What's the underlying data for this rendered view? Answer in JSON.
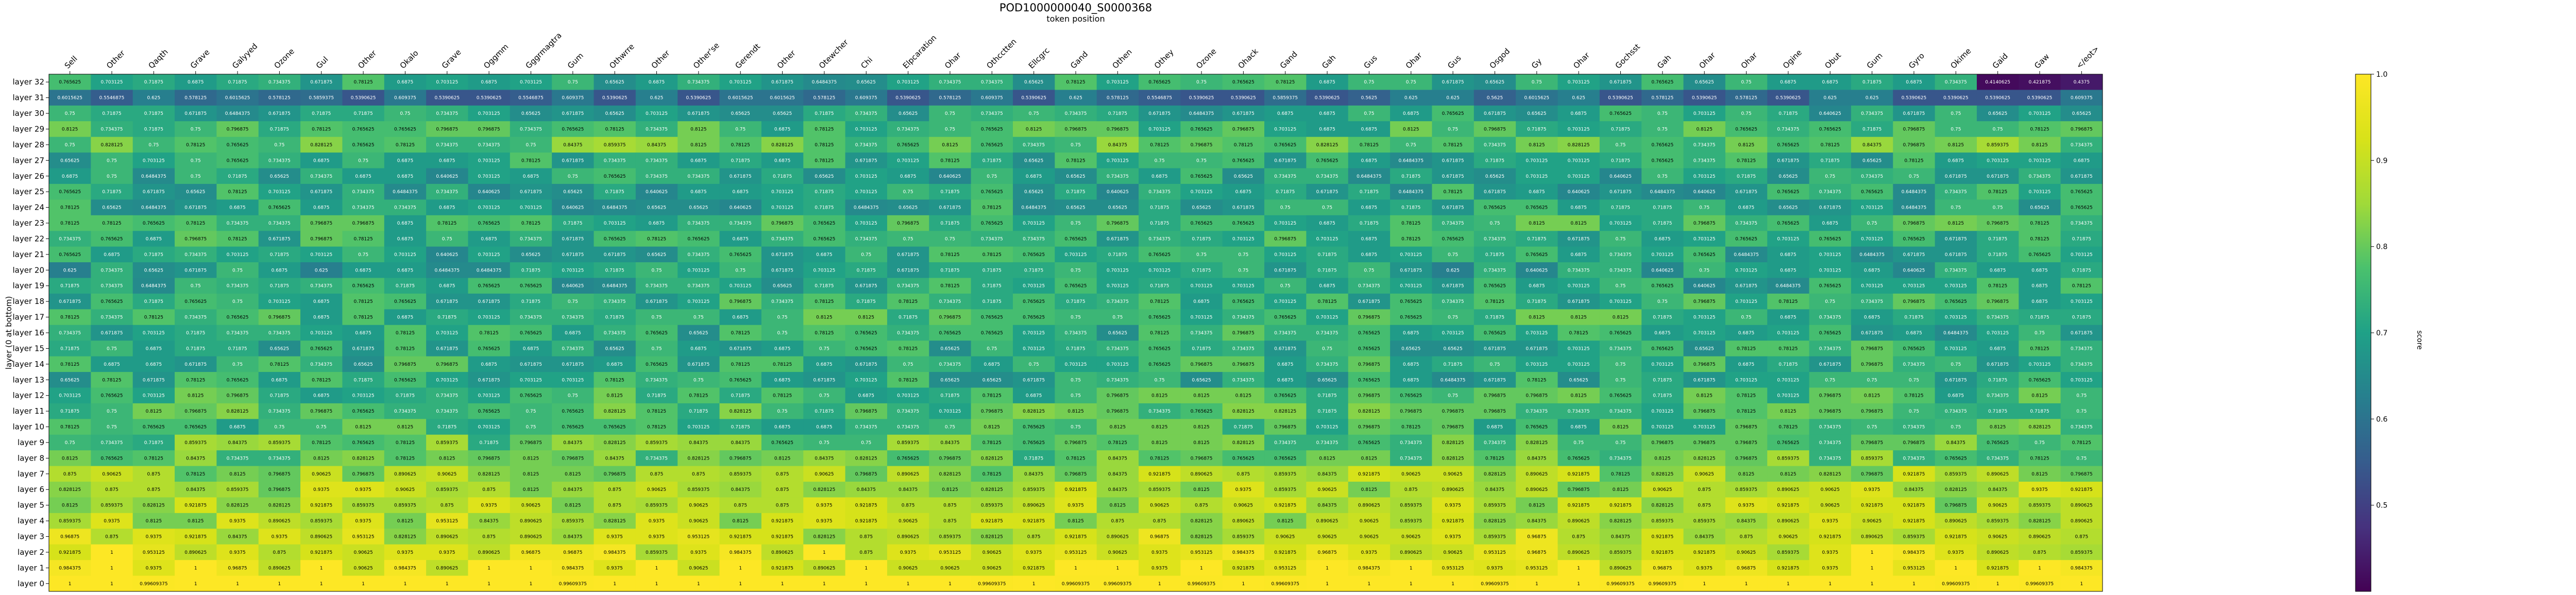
{
  "chart_data": {
    "type": "heatmap",
    "title": "POD1000000040_S0000368",
    "subtitle": "token position",
    "ylabel": "layer (0 at bottom)",
    "colorbar_label": "score",
    "colorbar_range": [
      0.4,
      1.0
    ],
    "colorbar_ticks": [
      "0.5",
      "0.6",
      "0.7",
      "0.8",
      "0.9",
      "1.0"
    ],
    "colormap": "viridis",
    "x_tokens": [
      "Sell",
      "Other",
      "Qaqth",
      "Grave",
      "Galyyed",
      "Ozone",
      "Gul",
      "Other",
      "Okalo",
      "Grave",
      "Oggmm",
      "Gggrmagtra",
      "Gum",
      "Othwrre",
      "Other",
      "Other'se",
      "Gerendt",
      "Other",
      "Otewcher",
      "Chi",
      "Elpcaration",
      "Ohar",
      "Othcctten",
      "Ellcgrc",
      "Gand",
      "Othen",
      "Othey",
      "Ozone",
      "Ohack",
      "Gand",
      "Gah",
      "Gus",
      "Ohar",
      "Gus",
      "Osgod",
      "Gy",
      "Ohar",
      "Gochsst",
      "Gah",
      "Ohar",
      "Ohar",
      "Ogine",
      "Obut",
      "Gum",
      "Gyro",
      "Okime",
      "Gaid",
      "Gaw",
      "</eot>"
    ],
    "y_labels": [
      "layer 32",
      "layer 31",
      "layer 30",
      "layer 29",
      "layer 28",
      "layer 27",
      "layer 26",
      "layer 25",
      "layer 24",
      "layer 23",
      "layer 22",
      "layer 21",
      "layer 20",
      "layer 19",
      "layer 18",
      "layer 17",
      "layer 16",
      "layer 15",
      "layer 14",
      "layer 13",
      "layer 12",
      "layer 11",
      "layer 10",
      "layer 9",
      "layer 8",
      "layer 7",
      "layer 6",
      "layer 5",
      "layer 4",
      "layer 3",
      "layer 2",
      "layer 1",
      "layer 0"
    ],
    "row_base": [
      0.71,
      0.56,
      0.7,
      0.75,
      0.8,
      0.72,
      0.7,
      0.71,
      0.71,
      0.75,
      0.73,
      0.71,
      0.68,
      0.71,
      0.73,
      0.75,
      0.72,
      0.72,
      0.73,
      0.72,
      0.75,
      0.77,
      0.76,
      0.79,
      0.79,
      0.85,
      0.87,
      0.87,
      0.88,
      0.9,
      0.93,
      0.96,
      1.0
    ],
    "value_palette": [
      0.6875,
      0.703125,
      0.71875,
      0.734375,
      0.75,
      0.765625,
      0.78125,
      0.796875,
      0.8125,
      0.828125,
      0.84375,
      0.859375,
      0.875,
      0.890625,
      0.90625,
      0.921875,
      0.9375,
      0.953125,
      0.96875,
      0.984375,
      1.0
    ],
    "value_samples": [
      "0.6484375",
      "0.75",
      "0.640625",
      "0.7265625",
      "0.7109375",
      "0.703125",
      "0.78906250",
      "0.625",
      "0.6640625",
      "0.796875",
      "0.7734375",
      "0.7578125",
      "0.8125",
      "0.7421875",
      "0.828125",
      "0.84375",
      "0.859375",
      "0.875",
      "0.890625",
      "0.90625",
      "0.921875",
      "0.9375",
      "0.953125",
      "0.96875",
      "0.984375",
      "1.0",
      "0.4375",
      "0.421875",
      "0.4140625"
    ]
  }
}
